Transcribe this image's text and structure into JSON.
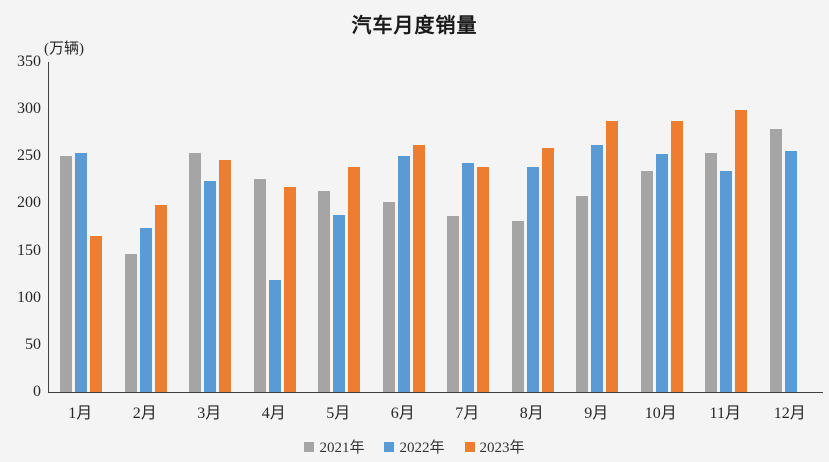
{
  "chart_data": {
    "type": "bar",
    "title": "汽车月度销量",
    "unit_label": "(万辆)",
    "xlabel": "",
    "ylabel": "万辆",
    "ylim": [
      0,
      350
    ],
    "yticks": [
      0,
      50,
      100,
      150,
      200,
      250,
      300,
      350
    ],
    "grid": false,
    "legend_position": "bottom-center",
    "background_color": "#f4f4f4",
    "categories": [
      "1月",
      "2月",
      "3月",
      "4月",
      "5月",
      "6月",
      "7月",
      "8月",
      "9月",
      "10月",
      "11月",
      "12月"
    ],
    "series": [
      {
        "name": "2021年",
        "color": "#a5a5a5",
        "values": [
          250,
          146,
          253,
          226,
          213,
          202,
          187,
          181,
          208,
          234,
          253,
          279
        ]
      },
      {
        "name": "2022年",
        "color": "#5b9bd5",
        "values": [
          253,
          174,
          224,
          119,
          188,
          250,
          243,
          239,
          262,
          252,
          234,
          256
        ]
      },
      {
        "name": "2023年",
        "color": "#ed7d31",
        "values": [
          165,
          198,
          246,
          217,
          239,
          262,
          239,
          259,
          287,
          287,
          299,
          null
        ]
      }
    ]
  }
}
